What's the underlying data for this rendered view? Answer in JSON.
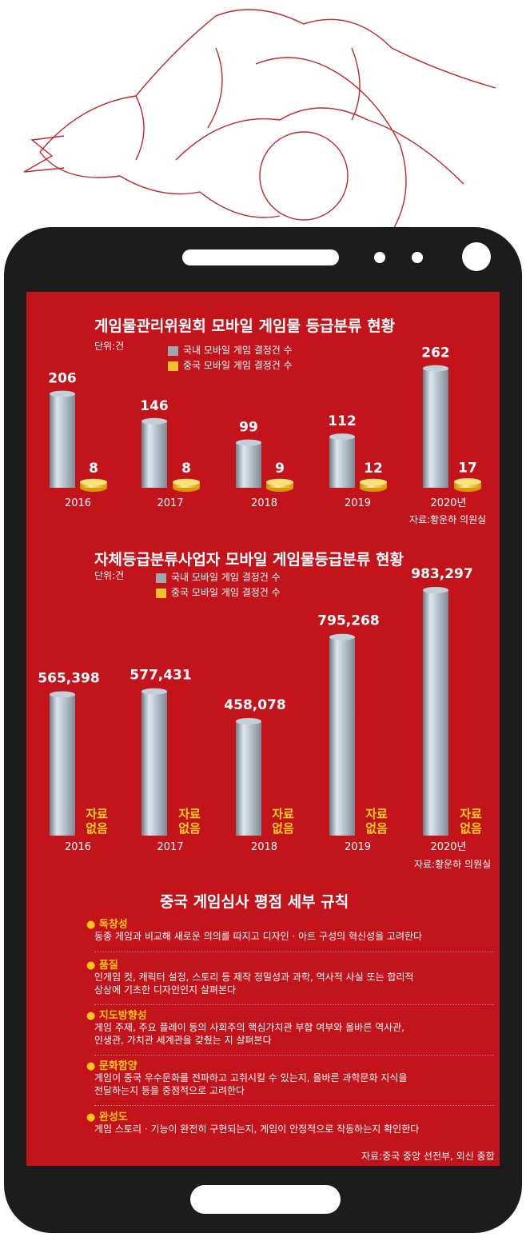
{
  "colors": {
    "screen": "#c3141c",
    "phone": "#1c1c1c",
    "domestic": "#9aa8b3",
    "chinese": "#f2c12e",
    "accent": "#ffc61a"
  },
  "chart_data": [
    {
      "type": "bar",
      "title": "게임물관리위원회 모바일 게임물 등급분류 현황",
      "unit": "단위:건",
      "categories": [
        "2016",
        "2017",
        "2018",
        "2019",
        "2020년"
      ],
      "series": [
        {
          "name": "국내 모바일 게임 결정건 수",
          "values": [
            206,
            146,
            99,
            112,
            262
          ]
        },
        {
          "name": "중국 모바일 게임 결정건 수",
          "values": [
            8,
            8,
            9,
            12,
            17
          ]
        }
      ],
      "value_labels": [
        [
          "206",
          "146",
          "99",
          "112",
          "262"
        ],
        [
          "8",
          "8",
          "9",
          "12",
          "17"
        ]
      ],
      "source": "자료:황운하 의원실"
    },
    {
      "type": "bar",
      "title": "자체등급분류사업자 모바일 게임물등급분류 현황",
      "unit": "단위:건",
      "categories": [
        "2016",
        "2017",
        "2018",
        "2019",
        "2020년"
      ],
      "series": [
        {
          "name": "국내 모바일 게임 결정건 수",
          "values": [
            565398,
            577431,
            458078,
            795268,
            983297
          ]
        },
        {
          "name": "중국 모바일 게임 결정건 수",
          "values": [
            null,
            null,
            null,
            null,
            null
          ]
        }
      ],
      "value_labels": [
        [
          "565,398",
          "577,431",
          "458,078",
          "795,268",
          "983,297"
        ]
      ],
      "no_data_label": [
        "자료",
        "없음"
      ],
      "source": "자료:황운하 의원실"
    }
  ],
  "rules": {
    "title": "중국 게임심사 평점 세부 규칙",
    "items": [
      {
        "head": "독창성",
        "lines": [
          "동종 게임과 비교해 새로운 의의를 따지고 디자인 · 아트 구성의 혁신성을 고려한다"
        ]
      },
      {
        "head": "품질",
        "lines": [
          "인게임 컷, 캐릭터 설정, 스토리 등 제작 정밀성과 과학, 역사적 사실 또는 합리적",
          "상상에 기초한 디자인인지 살펴본다"
        ]
      },
      {
        "head": "지도방향성",
        "lines": [
          "게임 주제, 주요 플레이 등의 사회주의 핵심가치관 부합 여부와 올바른 역사관,",
          "인생관, 가치관 세계관을 갖췄는 지 살펴본다"
        ]
      },
      {
        "head": "문화함양",
        "lines": [
          "게임이 중국 우수문화를 전파하고 고취시킬 수 있는지, 올바른 과학문화 지식을",
          "전달하는지 등을 중점적으로 고려한다"
        ]
      },
      {
        "head": "완성도",
        "lines": [
          "게임 스토리 · 기능이 완전히 구현되는지, 게임이 안정적으로 작동하는지 확인한다"
        ]
      }
    ],
    "source": "자료:중국 중앙 선전부, 외신 종합"
  }
}
